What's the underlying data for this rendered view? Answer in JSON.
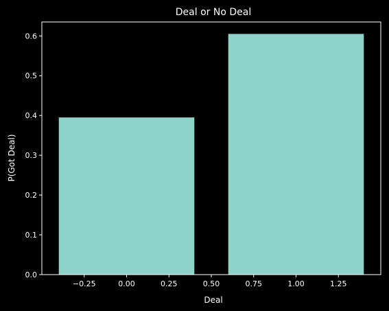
{
  "chart_data": {
    "type": "bar",
    "title": "Deal or No Deal",
    "xlabel": "Deal",
    "ylabel": "P(Got Deal)",
    "x": [
      0,
      1
    ],
    "values": [
      0.395,
      0.605
    ],
    "bar_width": 0.8,
    "xlim": [
      -0.5,
      1.5
    ],
    "ylim": [
      0,
      0.635
    ],
    "xticks": [
      -0.25,
      0.0,
      0.25,
      0.5,
      0.75,
      1.0,
      1.25
    ],
    "xtick_labels": [
      "−0.25",
      "0.00",
      "0.25",
      "0.50",
      "0.75",
      "1.00",
      "1.25"
    ],
    "yticks": [
      0.0,
      0.1,
      0.2,
      0.3,
      0.4,
      0.5,
      0.6
    ],
    "ytick_labels": [
      "0.0",
      "0.1",
      "0.2",
      "0.3",
      "0.4",
      "0.5",
      "0.6"
    ],
    "grid": false,
    "legend": "none",
    "colors": {
      "background": "#000000",
      "bar": "#8dd3c7",
      "axes": "#ffffff",
      "text": "#ffffff"
    }
  }
}
